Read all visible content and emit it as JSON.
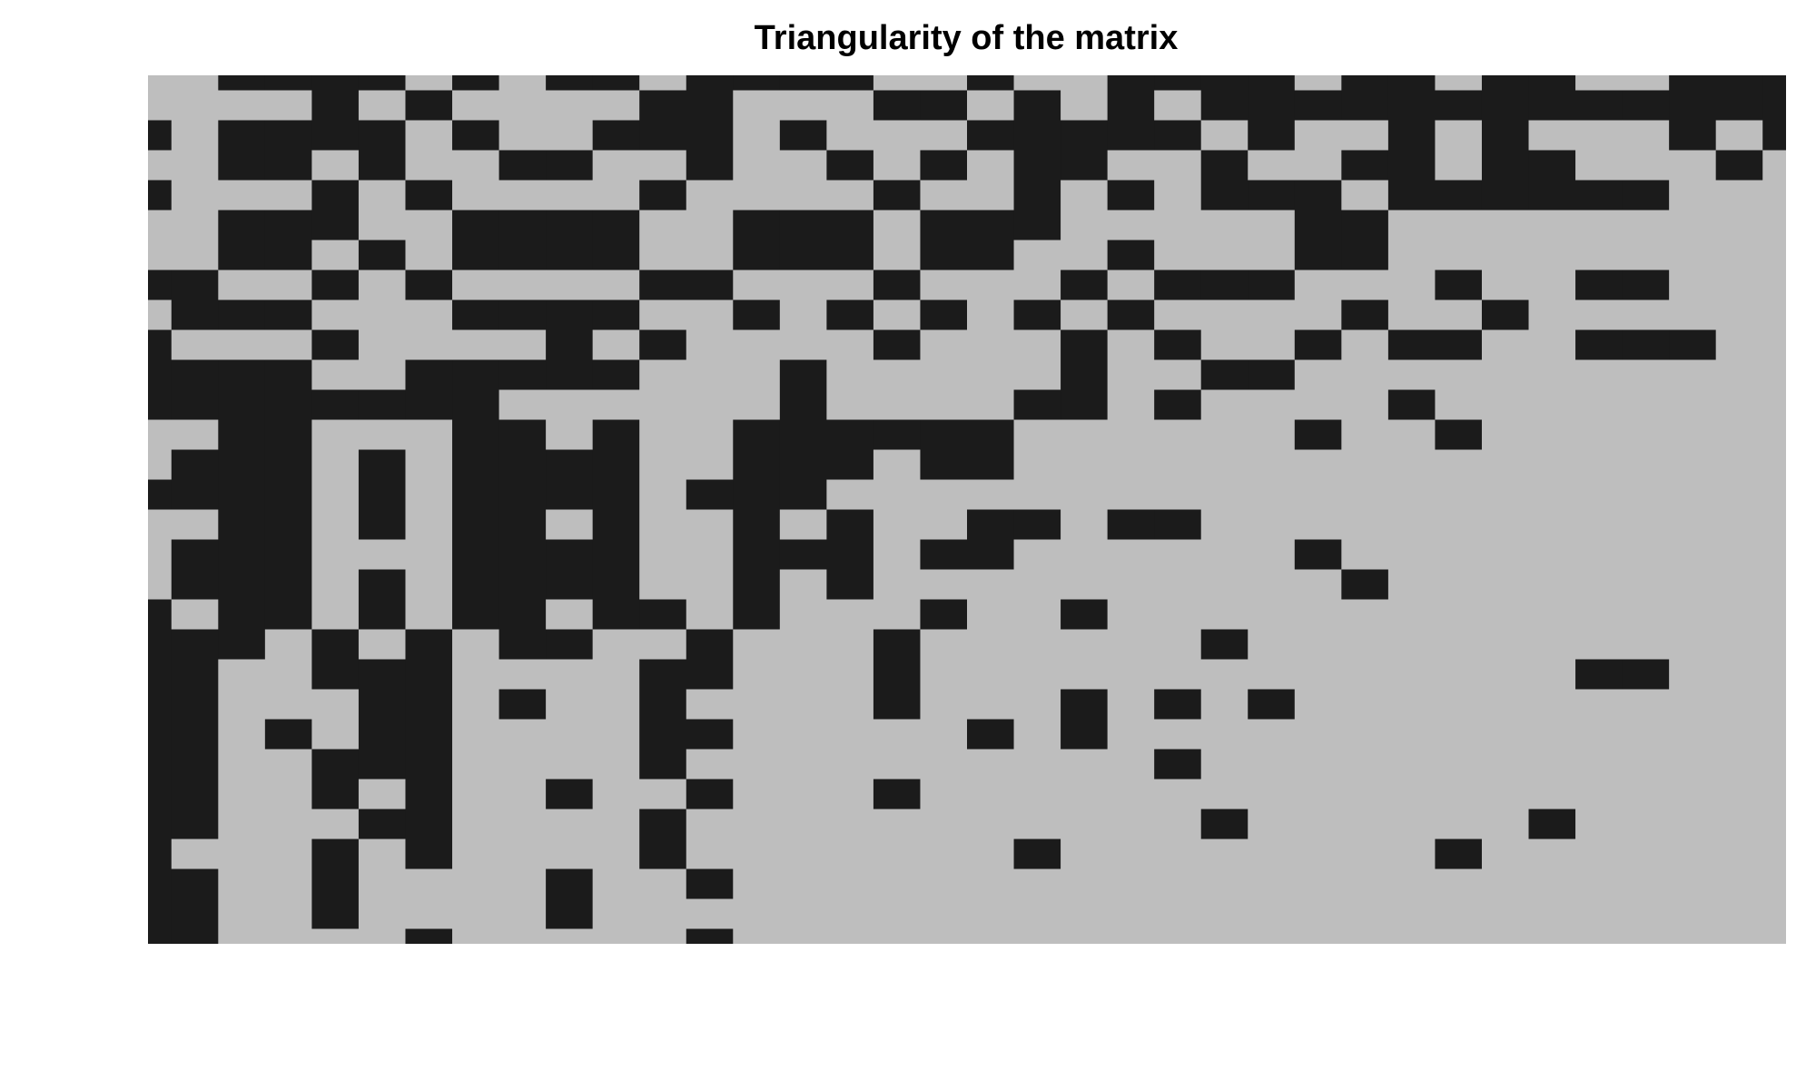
{
  "chart_data": {
    "type": "heatmap",
    "title": "Triangularity of the matrix",
    "colors": [
      "#bebebe",
      "#1b1b1b"
    ],
    "z": [
      [
        0,
        0,
        1,
        1,
        1,
        1,
        0,
        1,
        0,
        1,
        1,
        0,
        1,
        1,
        1,
        1,
        0,
        0,
        1,
        0,
        0,
        1,
        1,
        1,
        1,
        0,
        1,
        1,
        0,
        1,
        1,
        0,
        0,
        1,
        1,
        1
      ],
      [
        0,
        0,
        0,
        0,
        1,
        0,
        1,
        0,
        0,
        0,
        0,
        1,
        1,
        0,
        0,
        0,
        1,
        1,
        0,
        1,
        0,
        1,
        0,
        1,
        1,
        1,
        1,
        1,
        1,
        1,
        1,
        1,
        1,
        1,
        1,
        1
      ],
      [
        1,
        0,
        1,
        1,
        1,
        1,
        0,
        1,
        0,
        0,
        1,
        1,
        1,
        0,
        1,
        0,
        0,
        0,
        1,
        1,
        1,
        1,
        1,
        0,
        1,
        0,
        0,
        1,
        0,
        1,
        0,
        0,
        0,
        1,
        0,
        1
      ],
      [
        0,
        0,
        1,
        1,
        0,
        1,
        0,
        0,
        1,
        1,
        0,
        0,
        1,
        0,
        0,
        1,
        0,
        1,
        0,
        1,
        1,
        0,
        0,
        1,
        0,
        0,
        1,
        1,
        0,
        1,
        1,
        0,
        0,
        0,
        1,
        0
      ],
      [
        1,
        0,
        0,
        0,
        1,
        0,
        1,
        0,
        0,
        0,
        0,
        1,
        0,
        0,
        0,
        0,
        1,
        0,
        0,
        1,
        0,
        1,
        0,
        1,
        1,
        1,
        0,
        1,
        1,
        1,
        1,
        1,
        1,
        0,
        0,
        0
      ],
      [
        0,
        0,
        1,
        1,
        1,
        0,
        0,
        1,
        1,
        1,
        1,
        0,
        0,
        1,
        1,
        1,
        0,
        1,
        1,
        1,
        0,
        0,
        0,
        0,
        0,
        1,
        1,
        0,
        0,
        0,
        0,
        0,
        0,
        0,
        0,
        0
      ],
      [
        0,
        0,
        1,
        1,
        0,
        1,
        0,
        1,
        1,
        1,
        1,
        0,
        0,
        1,
        1,
        1,
        0,
        1,
        1,
        0,
        0,
        1,
        0,
        0,
        0,
        1,
        1,
        0,
        0,
        0,
        0,
        0,
        0,
        0,
        0,
        0
      ],
      [
        1,
        1,
        0,
        0,
        1,
        0,
        1,
        0,
        0,
        0,
        0,
        1,
        1,
        0,
        0,
        0,
        1,
        0,
        0,
        0,
        1,
        0,
        1,
        1,
        1,
        0,
        0,
        0,
        1,
        0,
        0,
        1,
        1,
        0,
        0,
        0
      ],
      [
        0,
        1,
        1,
        1,
        0,
        0,
        0,
        1,
        1,
        1,
        1,
        0,
        0,
        1,
        0,
        1,
        0,
        1,
        0,
        1,
        0,
        1,
        0,
        0,
        0,
        0,
        1,
        0,
        0,
        1,
        0,
        0,
        0,
        0,
        0,
        0
      ],
      [
        1,
        0,
        0,
        0,
        1,
        0,
        0,
        0,
        0,
        1,
        0,
        1,
        0,
        0,
        0,
        0,
        1,
        0,
        0,
        0,
        1,
        0,
        1,
        0,
        0,
        1,
        0,
        1,
        1,
        0,
        0,
        1,
        1,
        1,
        0,
        0
      ],
      [
        1,
        1,
        1,
        1,
        0,
        0,
        1,
        1,
        1,
        1,
        1,
        0,
        0,
        0,
        1,
        0,
        0,
        0,
        0,
        0,
        1,
        0,
        0,
        1,
        1,
        0,
        0,
        0,
        0,
        0,
        0,
        0,
        0,
        0,
        0,
        0
      ],
      [
        1,
        1,
        1,
        1,
        1,
        1,
        1,
        1,
        0,
        0,
        0,
        0,
        0,
        0,
        1,
        0,
        0,
        0,
        0,
        1,
        1,
        0,
        1,
        0,
        0,
        0,
        0,
        1,
        0,
        0,
        0,
        0,
        0,
        0,
        0,
        0
      ],
      [
        0,
        0,
        1,
        1,
        0,
        0,
        0,
        1,
        1,
        0,
        1,
        0,
        0,
        1,
        1,
        1,
        1,
        1,
        1,
        0,
        0,
        0,
        0,
        0,
        0,
        1,
        0,
        0,
        1,
        0,
        0,
        0,
        0,
        0,
        0,
        0
      ],
      [
        0,
        1,
        1,
        1,
        0,
        1,
        0,
        1,
        1,
        1,
        1,
        0,
        0,
        1,
        1,
        1,
        0,
        1,
        1,
        0,
        0,
        0,
        0,
        0,
        0,
        0,
        0,
        0,
        0,
        0,
        0,
        0,
        0,
        0,
        0,
        0
      ],
      [
        1,
        1,
        1,
        1,
        0,
        1,
        0,
        1,
        1,
        1,
        1,
        0,
        1,
        1,
        1,
        0,
        0,
        0,
        0,
        0,
        0,
        0,
        0,
        0,
        0,
        0,
        0,
        0,
        0,
        0,
        0,
        0,
        0,
        0,
        0,
        0
      ],
      [
        0,
        0,
        1,
        1,
        0,
        1,
        0,
        1,
        1,
        0,
        1,
        0,
        0,
        1,
        0,
        1,
        0,
        0,
        1,
        1,
        0,
        1,
        1,
        0,
        0,
        0,
        0,
        0,
        0,
        0,
        0,
        0,
        0,
        0,
        0,
        0
      ],
      [
        0,
        1,
        1,
        1,
        0,
        0,
        0,
        1,
        1,
        1,
        1,
        0,
        0,
        1,
        1,
        1,
        0,
        1,
        1,
        0,
        0,
        0,
        0,
        0,
        0,
        1,
        0,
        0,
        0,
        0,
        0,
        0,
        0,
        0,
        0,
        0
      ],
      [
        0,
        1,
        1,
        1,
        0,
        1,
        0,
        1,
        1,
        1,
        1,
        0,
        0,
        1,
        0,
        1,
        0,
        0,
        0,
        0,
        0,
        0,
        0,
        0,
        0,
        0,
        1,
        0,
        0,
        0,
        0,
        0,
        0,
        0,
        0,
        0
      ],
      [
        1,
        0,
        1,
        1,
        0,
        1,
        0,
        1,
        1,
        0,
        1,
        1,
        0,
        1,
        0,
        0,
        0,
        1,
        0,
        0,
        1,
        0,
        0,
        0,
        0,
        0,
        0,
        0,
        0,
        0,
        0,
        0,
        0,
        0,
        0,
        0
      ],
      [
        1,
        1,
        1,
        0,
        1,
        0,
        1,
        0,
        1,
        1,
        0,
        0,
        1,
        0,
        0,
        0,
        1,
        0,
        0,
        0,
        0,
        0,
        0,
        1,
        0,
        0,
        0,
        0,
        0,
        0,
        0,
        0,
        0,
        0,
        0,
        0
      ],
      [
        1,
        1,
        0,
        0,
        1,
        1,
        1,
        0,
        0,
        0,
        0,
        1,
        1,
        0,
        0,
        0,
        1,
        0,
        0,
        0,
        0,
        0,
        0,
        0,
        0,
        0,
        0,
        0,
        0,
        0,
        0,
        1,
        1,
        0,
        0,
        0
      ],
      [
        1,
        1,
        0,
        0,
        0,
        1,
        1,
        0,
        1,
        0,
        0,
        1,
        0,
        0,
        0,
        0,
        1,
        0,
        0,
        0,
        1,
        0,
        1,
        0,
        1,
        0,
        0,
        0,
        0,
        0,
        0,
        0,
        0,
        0,
        0,
        0
      ],
      [
        1,
        1,
        0,
        1,
        0,
        1,
        1,
        0,
        0,
        0,
        0,
        1,
        1,
        0,
        0,
        0,
        0,
        0,
        1,
        0,
        1,
        0,
        0,
        0,
        0,
        0,
        0,
        0,
        0,
        0,
        0,
        0,
        0,
        0,
        0,
        0
      ],
      [
        1,
        1,
        0,
        0,
        1,
        1,
        1,
        0,
        0,
        0,
        0,
        1,
        0,
        0,
        0,
        0,
        0,
        0,
        0,
        0,
        0,
        0,
        1,
        0,
        0,
        0,
        0,
        0,
        0,
        0,
        0,
        0,
        0,
        0,
        0,
        0
      ],
      [
        1,
        1,
        0,
        0,
        1,
        0,
        1,
        0,
        0,
        1,
        0,
        0,
        1,
        0,
        0,
        0,
        1,
        0,
        0,
        0,
        0,
        0,
        0,
        0,
        0,
        0,
        0,
        0,
        0,
        0,
        0,
        0,
        0,
        0,
        0,
        0
      ],
      [
        1,
        1,
        0,
        0,
        0,
        1,
        1,
        0,
        0,
        0,
        0,
        1,
        0,
        0,
        0,
        0,
        0,
        0,
        0,
        0,
        0,
        0,
        0,
        1,
        0,
        0,
        0,
        0,
        0,
        0,
        1,
        0,
        0,
        0,
        0,
        0
      ],
      [
        1,
        0,
        0,
        0,
        1,
        0,
        1,
        0,
        0,
        0,
        0,
        1,
        0,
        0,
        0,
        0,
        0,
        0,
        0,
        1,
        0,
        0,
        0,
        0,
        0,
        0,
        0,
        0,
        1,
        0,
        0,
        0,
        0,
        0,
        0,
        0
      ],
      [
        1,
        1,
        0,
        0,
        1,
        0,
        0,
        0,
        0,
        1,
        0,
        0,
        1,
        0,
        0,
        0,
        0,
        0,
        0,
        0,
        0,
        0,
        0,
        0,
        0,
        0,
        0,
        0,
        0,
        0,
        0,
        0,
        0,
        0,
        0,
        0
      ],
      [
        1,
        1,
        0,
        0,
        1,
        0,
        0,
        0,
        0,
        1,
        0,
        0,
        0,
        0,
        0,
        0,
        0,
        0,
        0,
        0,
        0,
        0,
        0,
        0,
        0,
        0,
        0,
        0,
        0,
        0,
        0,
        0,
        0,
        0,
        0,
        0
      ],
      [
        1,
        1,
        0,
        0,
        0,
        0,
        1,
        0,
        0,
        0,
        0,
        0,
        1,
        0,
        0,
        0,
        0,
        0,
        0,
        0,
        0,
        0,
        0,
        0,
        0,
        0,
        0,
        0,
        0,
        0,
        0,
        0,
        0,
        0,
        0,
        0
      ]
    ]
  }
}
